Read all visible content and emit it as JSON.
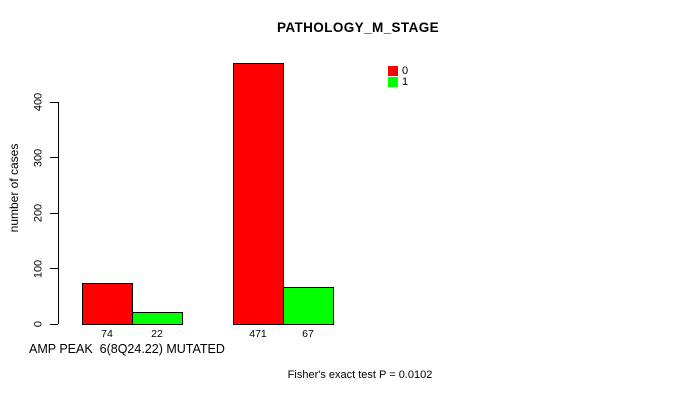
{
  "chart_data": {
    "type": "bar",
    "title": "PATHOLOGY_M_STAGE",
    "ylabel": "number of cases",
    "xlabel": "AMP PEAK  6(8Q24.22) MUTATED",
    "annotation": "Fisher's exact test P = 0.0102",
    "yticks": [
      0,
      100,
      200,
      300,
      400
    ],
    "ylim": [
      0,
      471
    ],
    "grid": false,
    "legend_position": "top-right",
    "n_groups": 2,
    "series": [
      {
        "name": "0",
        "color": "#ff0000",
        "values": [
          74,
          471
        ]
      },
      {
        "name": "1",
        "color": "#00ff00",
        "values": [
          22,
          67
        ]
      }
    ],
    "bar_value_labels": [
      "74",
      "22",
      "471",
      "67"
    ],
    "background_color": "#ffffff",
    "axis_color": "#000000"
  }
}
